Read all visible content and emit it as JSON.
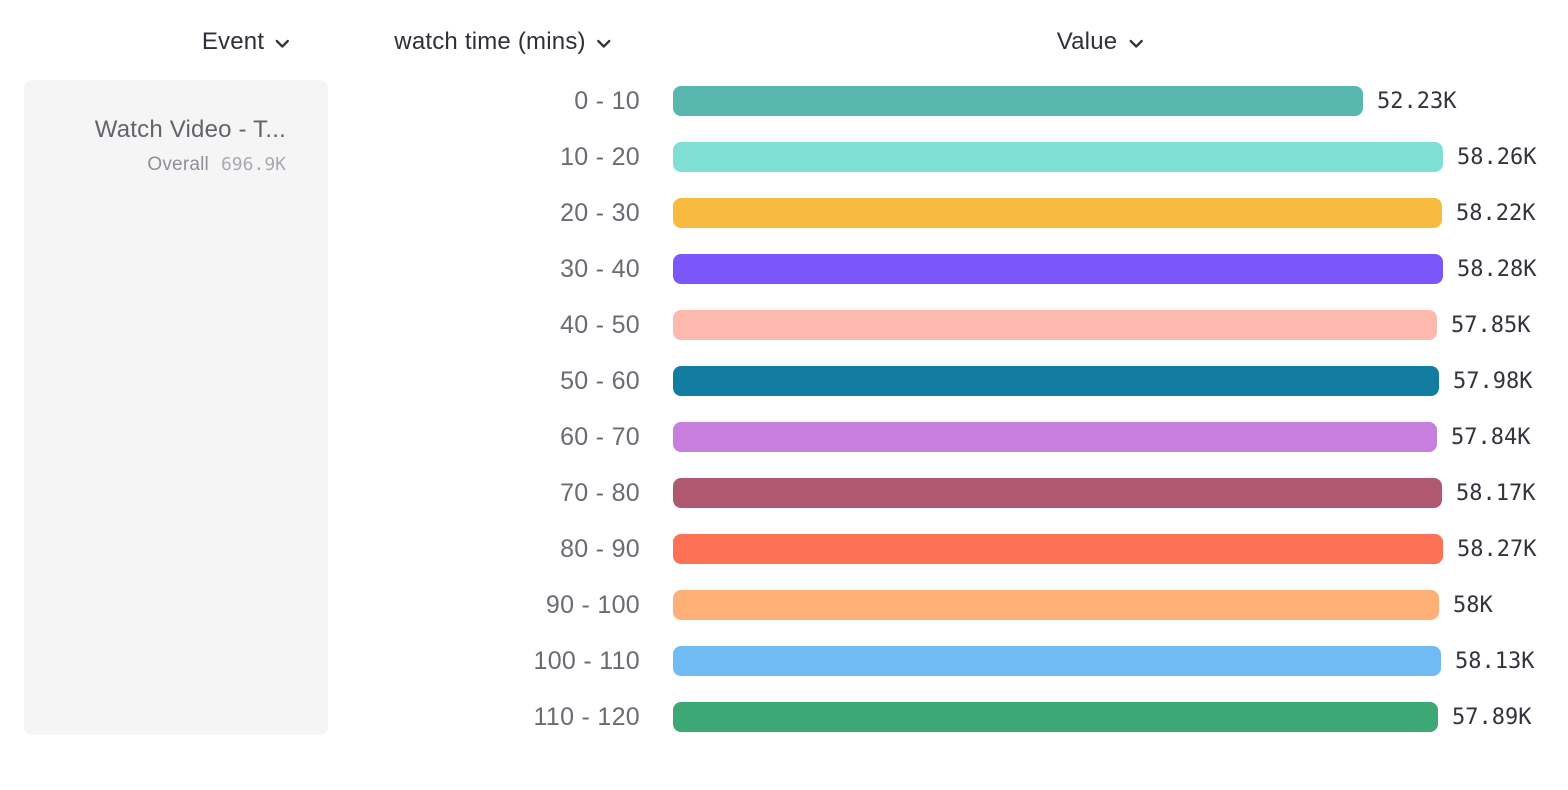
{
  "columns": [
    {
      "id": "event",
      "label": "Event"
    },
    {
      "id": "breakdown",
      "label": "watch time (mins)"
    },
    {
      "id": "value",
      "label": "Value"
    }
  ],
  "event_card": {
    "title": "Watch Video - T...",
    "overall_label": "Overall",
    "overall_value": "696.9K"
  },
  "chart_data": {
    "type": "bar",
    "orientation": "horizontal",
    "title": "",
    "xlabel": "Value",
    "ylabel": "watch time (mins)",
    "categories": [
      "0 - 10",
      "10 - 20",
      "20 - 30",
      "30 - 40",
      "40 - 50",
      "50 - 60",
      "60 - 70",
      "70 - 80",
      "80 - 90",
      "90 - 100",
      "100 - 110",
      "110 - 120"
    ],
    "values": [
      52230,
      58260,
      58220,
      58280,
      57850,
      57980,
      57840,
      58170,
      58270,
      58000,
      58130,
      57890
    ],
    "value_labels": [
      "52.23K",
      "58.26K",
      "58.22K",
      "58.28K",
      "57.85K",
      "57.98K",
      "57.84K",
      "58.17K",
      "58.27K",
      "58K",
      "58.13K",
      "57.89K"
    ],
    "colors": [
      "#58B7AF",
      "#80E0D6",
      "#F7BC3F",
      "#7B57FB",
      "#FDB9AE",
      "#127CA1",
      "#C77EDD",
      "#AF5870",
      "#FD7154",
      "#FFB077",
      "#6FBBF2",
      "#3CA876"
    ],
    "xlim": [
      0,
      58280
    ],
    "grid": false,
    "legend": false
  },
  "icons": {
    "chevron_down": "chevron-down",
    "chevron_color": "#33333d"
  }
}
